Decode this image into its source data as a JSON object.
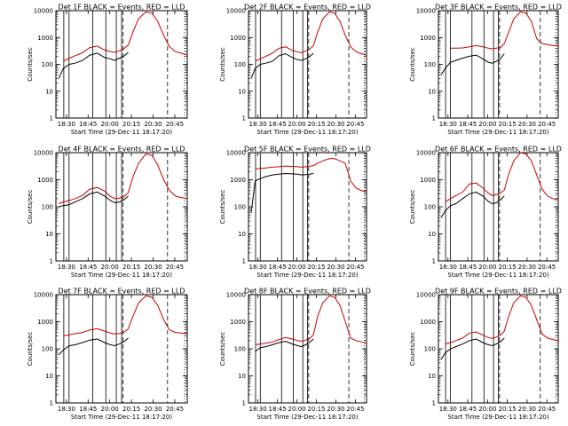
{
  "chart_data": [
    {
      "type": "line",
      "title": "Det 1F BLACK = Events, RED = LLD",
      "ylabel": "Counts/sec",
      "xlabel": "Start Time (29-Dec-11 18:17:20)",
      "yscale": "log",
      "ylim": [
        1,
        10000
      ],
      "x_ticks": [
        "18:30",
        "18:45",
        "20:00",
        "20:15",
        "20:30",
        "20:45"
      ],
      "y_ticks": [
        "1",
        "10",
        "100",
        "1000",
        "10000"
      ],
      "grid": false,
      "colors": {
        "events": "#000000",
        "lld": "#cc0000"
      },
      "x": [
        "18:23",
        "18:25",
        "18:28",
        "18:32",
        "18:36",
        "18:41",
        "18:46",
        "18:51",
        "18:56",
        "19:00",
        "19:03",
        "19:06",
        "19:09",
        "19:12",
        "19:15",
        "19:19",
        "19:24",
        "19:28",
        "19:32",
        "19:36",
        "19:40",
        "19:44",
        "19:48",
        "19:52"
      ],
      "series": [
        {
          "name": "Events",
          "values": [
            null,
            30,
            70,
            100,
            110,
            140,
            220,
            260,
            180,
            160,
            140,
            170,
            200,
            280,
            null,
            null,
            null,
            null,
            null,
            null,
            null,
            null,
            null,
            null
          ]
        },
        {
          "name": "LLD",
          "values": [
            null,
            null,
            130,
            170,
            210,
            270,
            420,
            480,
            340,
            300,
            280,
            320,
            380,
            520,
            1500,
            5000,
            9000,
            8000,
            4000,
            1200,
            450,
            300,
            260,
            220
          ]
        }
      ]
    },
    {
      "type": "line",
      "title": "Det 2F BLACK = Events, RED = LLD",
      "ylabel": "Counts/sec",
      "xlabel": "Start Time (29-Dec-11 18:17:20)",
      "yscale": "log",
      "ylim": [
        1,
        10000
      ],
      "x_ticks": [
        "18:30",
        "18:45",
        "20:00",
        "20:15",
        "20:30",
        "20:45"
      ],
      "y_ticks": [
        "1",
        "10",
        "100",
        "1000",
        "10000"
      ],
      "grid": false,
      "colors": {
        "events": "#000000",
        "lld": "#cc0000"
      },
      "x": [
        "18:23",
        "18:25",
        "18:28",
        "18:32",
        "18:36",
        "18:41",
        "18:46",
        "18:51",
        "18:56",
        "19:00",
        "19:03",
        "19:06",
        "19:09",
        "19:12",
        "19:15",
        "19:19",
        "19:24",
        "19:28",
        "19:32",
        "19:36",
        "19:40",
        "19:44",
        "19:48",
        "19:52"
      ],
      "series": [
        {
          "name": "Events",
          "values": [
            null,
            30,
            70,
            100,
            110,
            130,
            210,
            250,
            180,
            150,
            140,
            160,
            190,
            260,
            null,
            null,
            null,
            null,
            null,
            null,
            null,
            null,
            null,
            null
          ]
        },
        {
          "name": "LLD",
          "values": [
            null,
            null,
            130,
            160,
            200,
            260,
            400,
            450,
            330,
            290,
            270,
            310,
            360,
            500,
            1500,
            5000,
            9000,
            8000,
            4000,
            1200,
            450,
            300,
            250,
            220
          ]
        }
      ]
    },
    {
      "type": "line",
      "title": "Det 3F BLACK = Events, RED = LLD",
      "ylabel": "Counts/sec",
      "xlabel": "Start Time (29-Dec-11 18:17:20)",
      "yscale": "log",
      "ylim": [
        1,
        10000
      ],
      "x_ticks": [
        "18:30",
        "18:45",
        "20:00",
        "20:15",
        "20:30",
        "20:45"
      ],
      "y_ticks": [
        "1",
        "10",
        "100",
        "1000",
        "10000"
      ],
      "grid": false,
      "colors": {
        "events": "#000000",
        "lld": "#cc0000"
      },
      "x": [
        "18:23",
        "18:25",
        "18:28",
        "18:32",
        "18:36",
        "18:41",
        "18:46",
        "18:51",
        "18:56",
        "19:00",
        "19:03",
        "19:06",
        "19:09",
        "19:12",
        "19:15",
        "19:19",
        "19:24",
        "19:28",
        "19:32",
        "19:36",
        "19:40",
        "19:44",
        "19:48",
        "19:52"
      ],
      "series": [
        {
          "name": "Events",
          "values": [
            null,
            40,
            70,
            120,
            140,
            170,
            200,
            220,
            160,
            120,
            110,
            130,
            160,
            250,
            null,
            null,
            null,
            null,
            null,
            null,
            null,
            null,
            null,
            null
          ]
        },
        {
          "name": "LLD",
          "values": [
            null,
            null,
            null,
            400,
            400,
            410,
            450,
            500,
            450,
            400,
            380,
            400,
            420,
            600,
            1500,
            5000,
            9000,
            8000,
            4000,
            900,
            600,
            550,
            500,
            480
          ]
        }
      ]
    },
    {
      "type": "line",
      "title": "Det 4F BLACK = Events, RED = LLD",
      "ylabel": "Counts/sec",
      "xlabel": "Start Time (29-Dec-11 18:17:20)",
      "yscale": "log",
      "ylim": [
        1,
        10000
      ],
      "x_ticks": [
        "18:30",
        "18:45",
        "20:00",
        "20:15",
        "20:30",
        "20:45"
      ],
      "y_ticks": [
        "1",
        "10",
        "100",
        "1000",
        "10000"
      ],
      "grid": false,
      "colors": {
        "events": "#000000",
        "lld": "#cc0000"
      },
      "x": [
        "18:23",
        "18:25",
        "18:28",
        "18:32",
        "18:36",
        "18:41",
        "18:46",
        "18:51",
        "18:56",
        "19:00",
        "19:03",
        "19:06",
        "19:09",
        "19:12",
        "19:15",
        "19:19",
        "19:24",
        "19:28",
        "19:32",
        "19:36",
        "19:40",
        "19:44",
        "19:48",
        "19:52"
      ],
      "series": [
        {
          "name": "Events",
          "values": [
            null,
            100,
            110,
            120,
            150,
            200,
            300,
            350,
            250,
            170,
            140,
            150,
            180,
            250,
            null,
            null,
            null,
            null,
            null,
            null,
            null,
            null,
            null,
            null
          ]
        },
        {
          "name": "LLD",
          "values": [
            null,
            130,
            150,
            170,
            200,
            260,
            450,
            520,
            380,
            240,
            200,
            210,
            240,
            330,
            1200,
            4000,
            9000,
            8000,
            3500,
            1000,
            400,
            250,
            220,
            200
          ]
        }
      ]
    },
    {
      "type": "line",
      "title": "Det 5F BLACK = Events, RED = LLD",
      "ylabel": "Counts/sec",
      "xlabel": "Start Time (29-Dec-11 18:17:20)",
      "yscale": "log",
      "ylim": [
        1,
        10000
      ],
      "x_ticks": [
        "18:30",
        "18:45",
        "20:00",
        "20:15",
        "20:30",
        "20:45"
      ],
      "y_ticks": [
        "1",
        "10",
        "100",
        "1000",
        "10000"
      ],
      "grid": false,
      "colors": {
        "events": "#000000",
        "lld": "#cc0000"
      },
      "x": [
        "18:23",
        "18:25",
        "18:28",
        "18:32",
        "18:36",
        "18:41",
        "18:46",
        "18:51",
        "18:56",
        "19:00",
        "19:03",
        "19:06",
        "19:09",
        "19:12",
        "19:15",
        "19:19",
        "19:24",
        "19:28",
        "19:32",
        "19:36",
        "19:40",
        "19:44",
        "19:48",
        "19:52"
      ],
      "series": [
        {
          "name": "Events",
          "values": [
            null,
            60,
            900,
            1100,
            1300,
            1500,
            1600,
            1700,
            1650,
            1600,
            1500,
            1550,
            1600,
            1700,
            null,
            null,
            null,
            null,
            null,
            null,
            null,
            null,
            null,
            null
          ]
        },
        {
          "name": "LLD",
          "values": [
            null,
            null,
            2500,
            2600,
            2700,
            2900,
            3000,
            3200,
            3100,
            3000,
            2900,
            3000,
            3200,
            3300,
            4000,
            5000,
            6000,
            6000,
            5000,
            4000,
            900,
            500,
            400,
            350
          ]
        }
      ]
    },
    {
      "type": "line",
      "title": "Det 6F BLACK = Events, RED = LLD",
      "ylabel": "Counts/sec",
      "xlabel": "Start Time (29-Dec-11 18:17:20)",
      "yscale": "log",
      "ylim": [
        1,
        10000
      ],
      "x_ticks": [
        "18:30",
        "18:45",
        "20:00",
        "20:15",
        "20:30",
        "20:45"
      ],
      "y_ticks": [
        "1",
        "10",
        "100",
        "1000",
        "10000"
      ],
      "grid": false,
      "colors": {
        "events": "#000000",
        "lld": "#cc0000"
      },
      "x": [
        "18:23",
        "18:25",
        "18:28",
        "18:32",
        "18:36",
        "18:41",
        "18:46",
        "18:51",
        "18:56",
        "19:00",
        "19:03",
        "19:06",
        "19:09",
        "19:12",
        "19:15",
        "19:19",
        "19:24",
        "19:28",
        "19:32",
        "19:36",
        "19:40",
        "19:44",
        "19:48",
        "19:52"
      ],
      "series": [
        {
          "name": "Events",
          "values": [
            null,
            40,
            70,
            110,
            130,
            200,
            300,
            350,
            250,
            160,
            130,
            140,
            180,
            250,
            null,
            null,
            null,
            null,
            null,
            null,
            null,
            null,
            null,
            null
          ]
        },
        {
          "name": "LLD",
          "values": [
            null,
            null,
            150,
            200,
            260,
            350,
            700,
            750,
            500,
            320,
            260,
            280,
            320,
            420,
            1500,
            5000,
            10000,
            9000,
            5000,
            1500,
            450,
            250,
            200,
            180
          ]
        }
      ]
    },
    {
      "type": "line",
      "title": "Det 7F BLACK = Events, RED = LLD",
      "ylabel": "Counts/sec",
      "xlabel": "Start Time (29-Dec-11 18:17:20)",
      "yscale": "log",
      "ylim": [
        1,
        10000
      ],
      "x_ticks": [
        "18:30",
        "18:45",
        "20:00",
        "20:15",
        "20:30",
        "20:45"
      ],
      "y_ticks": [
        "1",
        "10",
        "100",
        "1000",
        "10000"
      ],
      "grid": false,
      "colors": {
        "events": "#000000",
        "lld": "#cc0000"
      },
      "x": [
        "18:23",
        "18:25",
        "18:28",
        "18:32",
        "18:36",
        "18:41",
        "18:46",
        "18:51",
        "18:56",
        "19:00",
        "19:03",
        "19:06",
        "19:09",
        "19:12",
        "19:15",
        "19:19",
        "19:24",
        "19:28",
        "19:32",
        "19:36",
        "19:40",
        "19:44",
        "19:48",
        "19:52"
      ],
      "series": [
        {
          "name": "Events",
          "values": [
            null,
            60,
            90,
            130,
            140,
            170,
            210,
            230,
            170,
            140,
            130,
            150,
            180,
            250,
            null,
            null,
            null,
            null,
            null,
            null,
            null,
            null,
            null,
            null
          ]
        },
        {
          "name": "LLD",
          "values": [
            null,
            null,
            300,
            330,
            360,
            400,
            500,
            550,
            450,
            380,
            350,
            370,
            400,
            550,
            1500,
            5000,
            9000,
            8000,
            4000,
            1200,
            500,
            400,
            380,
            360
          ]
        }
      ]
    },
    {
      "type": "line",
      "title": "Det 8F BLACK = Events, RED = LLD",
      "ylabel": "Counts/sec",
      "xlabel": "Start Time (29-Dec-11 18:17:20)",
      "yscale": "log",
      "ylim": [
        1,
        10000
      ],
      "x_ticks": [
        "18:30",
        "18:45",
        "20:00",
        "20:15",
        "20:30",
        "20:45"
      ],
      "y_ticks": [
        "1",
        "10",
        "100",
        "1000",
        "10000"
      ],
      "grid": false,
      "colors": {
        "events": "#000000",
        "lld": "#cc0000"
      },
      "x": [
        "18:23",
        "18:25",
        "18:28",
        "18:32",
        "18:36",
        "18:41",
        "18:46",
        "18:51",
        "18:56",
        "19:00",
        "19:03",
        "19:06",
        "19:09",
        "19:12",
        "19:15",
        "19:19",
        "19:24",
        "19:28",
        "19:32",
        "19:36",
        "19:40",
        "19:44",
        "19:48",
        "19:52"
      ],
      "series": [
        {
          "name": "Events",
          "values": [
            null,
            null,
            80,
            110,
            120,
            140,
            170,
            190,
            150,
            130,
            120,
            140,
            170,
            230,
            null,
            null,
            null,
            null,
            null,
            null,
            null,
            null,
            null,
            null
          ]
        },
        {
          "name": "LLD",
          "values": [
            null,
            null,
            140,
            150,
            160,
            180,
            220,
            260,
            230,
            200,
            190,
            210,
            240,
            330,
            1500,
            5000,
            9000,
            8000,
            4000,
            1000,
            250,
            200,
            180,
            160
          ]
        }
      ]
    },
    {
      "type": "line",
      "title": "Det 9F BLACK = Events, RED = LLD",
      "ylabel": "Counts/sec",
      "xlabel": "Start Time (29-Dec-11 18:17:20)",
      "yscale": "log",
      "ylim": [
        1,
        10000
      ],
      "x_ticks": [
        "18:30",
        "18:45",
        "20:00",
        "20:15",
        "20:30",
        "20:45"
      ],
      "y_ticks": [
        "1",
        "10",
        "100",
        "1000",
        "10000"
      ],
      "grid": false,
      "colors": {
        "events": "#000000",
        "lld": "#cc0000"
      },
      "x": [
        "18:23",
        "18:25",
        "18:28",
        "18:32",
        "18:36",
        "18:41",
        "18:46",
        "18:51",
        "18:56",
        "19:00",
        "19:03",
        "19:06",
        "19:09",
        "19:12",
        "19:15",
        "19:19",
        "19:24",
        "19:28",
        "19:32",
        "19:36",
        "19:40",
        "19:44",
        "19:48",
        "19:52"
      ],
      "series": [
        {
          "name": "Events",
          "values": [
            null,
            40,
            70,
            100,
            120,
            150,
            200,
            230,
            170,
            140,
            130,
            150,
            180,
            250,
            null,
            null,
            null,
            null,
            null,
            null,
            null,
            null,
            null,
            null
          ]
        },
        {
          "name": "LLD",
          "values": [
            null,
            null,
            150,
            170,
            200,
            250,
            380,
            420,
            320,
            260,
            240,
            270,
            320,
            450,
            1500,
            5000,
            9000,
            8000,
            4000,
            1200,
            350,
            250,
            220,
            200
          ]
        }
      ]
    }
  ]
}
